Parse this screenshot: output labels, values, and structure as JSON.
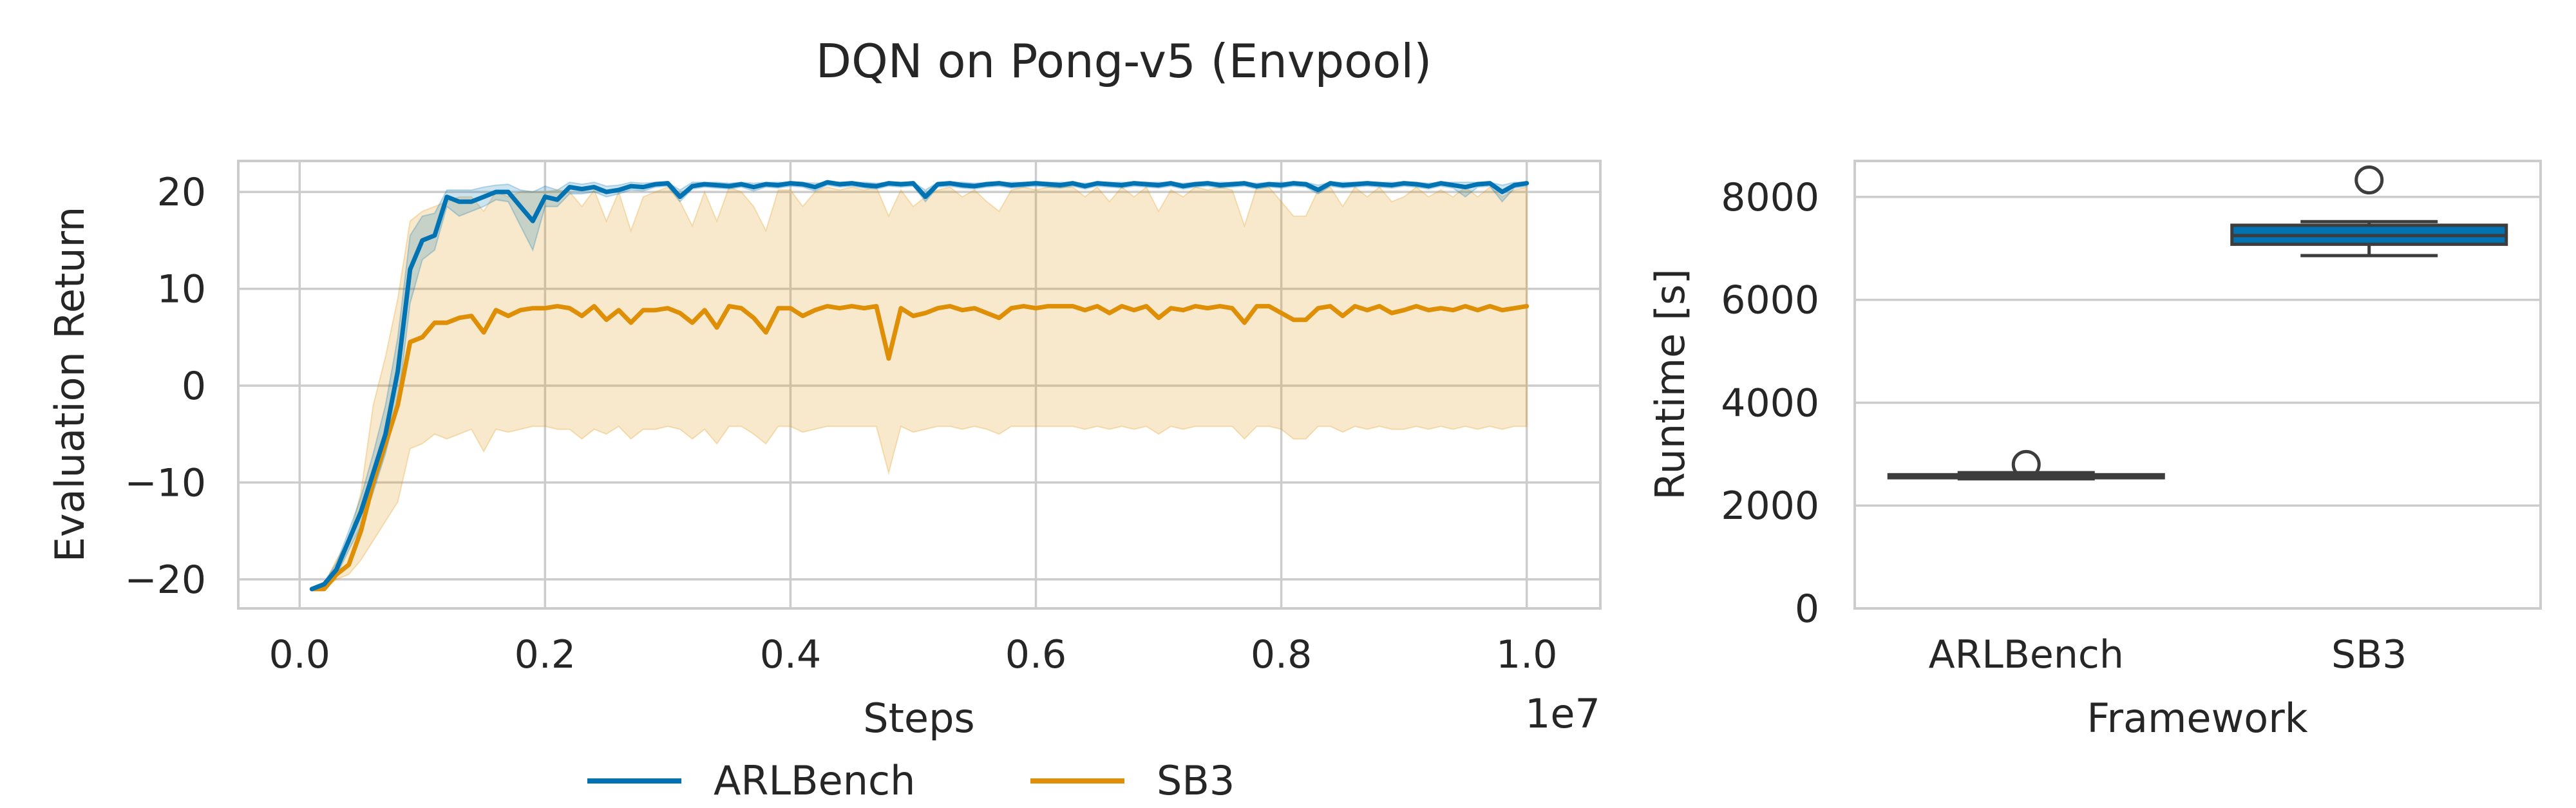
{
  "figure": {
    "title": "DQN on Pong-v5 (Envpool)"
  },
  "legend": {
    "placement": "bottom-center",
    "entries": [
      {
        "label": "ARLBench",
        "color": "#0173b2"
      },
      {
        "label": "SB3",
        "color": "#de8f05"
      }
    ]
  },
  "chart_data": [
    {
      "type": "line",
      "xlabel": "Steps",
      "ylabel": "Evaluation Return",
      "x_offset_label": "1e7",
      "xlim": [
        -0.05,
        1.06
      ],
      "ylim": [
        -23,
        23.2
      ],
      "xticks": [
        0.0,
        0.2,
        0.4,
        0.6,
        0.8,
        1.0
      ],
      "xtick_labels": [
        "0.0",
        "0.2",
        "0.4",
        "0.6",
        "0.8",
        "1.0"
      ],
      "yticks": [
        -20,
        -10,
        0,
        10,
        20
      ],
      "ytick_labels": [
        "−20",
        "−10",
        "0",
        "10",
        "20"
      ],
      "grid": true,
      "x": [
        0.01,
        0.02,
        0.03,
        0.04,
        0.05,
        0.06,
        0.07,
        0.08,
        0.09,
        0.1,
        0.11,
        0.12,
        0.13,
        0.14,
        0.15,
        0.16,
        0.17,
        0.18,
        0.19,
        0.2,
        0.21,
        0.22,
        0.23,
        0.24,
        0.25,
        0.26,
        0.27,
        0.28,
        0.29,
        0.3,
        0.31,
        0.32,
        0.33,
        0.34,
        0.35,
        0.36,
        0.37,
        0.38,
        0.39,
        0.4,
        0.41,
        0.42,
        0.43,
        0.44,
        0.45,
        0.46,
        0.47,
        0.48,
        0.49,
        0.5,
        0.51,
        0.52,
        0.53,
        0.54,
        0.55,
        0.56,
        0.57,
        0.58,
        0.59,
        0.6,
        0.61,
        0.62,
        0.63,
        0.64,
        0.65,
        0.66,
        0.67,
        0.68,
        0.69,
        0.7,
        0.71,
        0.72,
        0.73,
        0.74,
        0.75,
        0.76,
        0.77,
        0.78,
        0.79,
        0.8,
        0.81,
        0.82,
        0.83,
        0.84,
        0.85,
        0.86,
        0.87,
        0.88,
        0.89,
        0.9,
        0.91,
        0.92,
        0.93,
        0.94,
        0.95,
        0.96,
        0.97,
        0.98,
        0.99,
        1.0
      ],
      "series": [
        {
          "name": "ARLBench",
          "color": "#0173b2",
          "values": [
            -21,
            -20.5,
            -19,
            -16,
            -13,
            -9,
            -5,
            1.5,
            12,
            15,
            15.5,
            19.5,
            19,
            19,
            19.5,
            20,
            20,
            18.5,
            17,
            19.5,
            19.2,
            20.5,
            20.3,
            20.5,
            20.0,
            20.2,
            20.6,
            20.5,
            20.8,
            20.9,
            19.5,
            20.6,
            20.8,
            20.7,
            20.6,
            20.8,
            20.5,
            20.8,
            20.7,
            20.9,
            20.8,
            20.5,
            21.0,
            20.8,
            20.9,
            20.7,
            20.6,
            20.9,
            20.8,
            20.9,
            19.5,
            20.8,
            20.9,
            20.7,
            20.6,
            20.8,
            20.9,
            20.7,
            20.8,
            20.9,
            20.8,
            20.7,
            20.9,
            20.6,
            20.9,
            20.8,
            20.7,
            20.9,
            20.8,
            20.7,
            20.9,
            20.6,
            20.8,
            20.9,
            20.7,
            20.8,
            20.9,
            20.6,
            20.8,
            20.7,
            20.9,
            20.8,
            20.2,
            20.9,
            20.7,
            20.8,
            20.9,
            20.8,
            20.7,
            20.9,
            20.8,
            20.6,
            20.9,
            20.7,
            20.5,
            20.8,
            20.9,
            20.0,
            20.7,
            20.9
          ],
          "lower": [
            -21,
            -20.7,
            -19.6,
            -17,
            -14.5,
            -11,
            -7,
            -2,
            8.5,
            13,
            14,
            18.5,
            17.5,
            18,
            18.5,
            19.2,
            19,
            16.5,
            14,
            18.5,
            18.5,
            19.8,
            19.8,
            20.0,
            19.5,
            19.8,
            20.2,
            20.1,
            20.5,
            20.6,
            19.0,
            20.3,
            20.5,
            20.4,
            20.3,
            20.5,
            20.1,
            20.5,
            20.4,
            20.6,
            20.5,
            20.1,
            20.7,
            20.5,
            20.6,
            20.4,
            20.3,
            20.6,
            20.5,
            20.6,
            19.0,
            20.5,
            20.6,
            20.4,
            20.3,
            20.5,
            20.6,
            20.4,
            20.5,
            20.6,
            20.5,
            20.4,
            20.6,
            20.3,
            20.6,
            20.5,
            20.4,
            20.6,
            20.5,
            20.4,
            20.6,
            20.3,
            20.5,
            20.6,
            20.4,
            20.5,
            20.6,
            20.3,
            20.5,
            20.4,
            20.6,
            20.5,
            19.8,
            20.6,
            20.4,
            20.5,
            20.6,
            20.5,
            20.4,
            20.6,
            20.5,
            20.3,
            20.6,
            20.4,
            19.5,
            20.5,
            20.6,
            19.0,
            20.4,
            20.6
          ],
          "upper": [
            -21,
            -20.3,
            -18.3,
            -15,
            -11.5,
            -7,
            -2,
            5,
            15.5,
            17.5,
            17.8,
            20.2,
            20.2,
            20.2,
            20.5,
            20.7,
            20.8,
            20.2,
            20.0,
            20.6,
            20.2,
            21.0,
            20.8,
            21.0,
            20.6,
            20.7,
            21.0,
            20.9,
            21.0,
            21.0,
            20.2,
            21.0,
            21.0,
            21.0,
            20.9,
            21.0,
            20.9,
            21.0,
            21.0,
            21.0,
            21.0,
            20.9,
            21.0,
            21.0,
            21.0,
            21.0,
            20.9,
            21.0,
            21.0,
            21.0,
            20.2,
            21.0,
            21.0,
            21.0,
            20.9,
            21.0,
            21.0,
            21.0,
            21.0,
            21.0,
            21.0,
            21.0,
            21.0,
            20.9,
            21.0,
            21.0,
            21.0,
            21.0,
            21.0,
            21.0,
            21.0,
            20.9,
            21.0,
            21.0,
            21.0,
            21.0,
            21.0,
            20.9,
            21.0,
            21.0,
            21.0,
            21.0,
            20.7,
            21.0,
            21.0,
            21.0,
            21.0,
            21.0,
            21.0,
            21.0,
            21.0,
            20.9,
            21.0,
            21.0,
            21.0,
            21.0,
            21.0,
            20.7,
            21.0,
            21.0
          ]
        },
        {
          "name": "SB3",
          "color": "#de8f05",
          "values": [
            -21,
            -21,
            -19.5,
            -18.5,
            -15,
            -10,
            -6,
            -2,
            4.5,
            5,
            6.5,
            6.5,
            7,
            7.2,
            5.5,
            7.8,
            7.2,
            7.8,
            8,
            8,
            8.2,
            8.0,
            7.2,
            8.2,
            6.8,
            7.8,
            6.5,
            7.8,
            7.8,
            8.0,
            7.5,
            6.5,
            7.8,
            6.0,
            8.2,
            8.0,
            7.0,
            5.5,
            8.0,
            8.0,
            7.2,
            7.8,
            8.2,
            8.0,
            8.2,
            8.0,
            8.2,
            2.8,
            8.0,
            7.2,
            7.5,
            8.0,
            8.2,
            7.8,
            8.0,
            7.5,
            7.0,
            8.0,
            8.2,
            8.0,
            8.2,
            8.2,
            8.2,
            7.8,
            8.2,
            7.5,
            8.2,
            7.8,
            8.2,
            7.0,
            8.0,
            7.8,
            8.2,
            8.0,
            8.2,
            8.0,
            6.5,
            8.2,
            8.2,
            7.5,
            6.8,
            6.8,
            8.0,
            8.2,
            7.2,
            8.2,
            7.8,
            8.2,
            7.5,
            7.8,
            8.2,
            7.8,
            8.0,
            7.8,
            8.2,
            7.8,
            8.2,
            7.8,
            8.0,
            8.2
          ],
          "lower": [
            -21,
            -21,
            -20,
            -19.5,
            -18,
            -16,
            -14,
            -12,
            -6.5,
            -6,
            -5,
            -5.5,
            -5,
            -4.5,
            -6.8,
            -4.5,
            -4.8,
            -4.5,
            -4.2,
            -4.2,
            -4.5,
            -4.5,
            -5.5,
            -4.5,
            -5.0,
            -4.2,
            -5.5,
            -4.5,
            -4.5,
            -4.2,
            -4.5,
            -5.5,
            -4.5,
            -6.0,
            -4.2,
            -4.2,
            -5.0,
            -6.0,
            -4.2,
            -4.2,
            -4.8,
            -4.5,
            -4.2,
            -4.2,
            -4.2,
            -4.2,
            -4.2,
            -9.0,
            -4.2,
            -4.8,
            -4.5,
            -4.2,
            -4.2,
            -4.5,
            -4.2,
            -4.5,
            -5.0,
            -4.2,
            -4.2,
            -4.2,
            -4.2,
            -4.2,
            -4.2,
            -4.5,
            -4.2,
            -4.5,
            -4.2,
            -4.5,
            -4.2,
            -5.0,
            -4.2,
            -4.5,
            -4.2,
            -4.2,
            -4.2,
            -4.2,
            -5.5,
            -4.2,
            -4.2,
            -4.5,
            -5.5,
            -5.5,
            -4.2,
            -4.2,
            -4.8,
            -4.2,
            -4.5,
            -4.2,
            -4.5,
            -4.5,
            -4.2,
            -4.5,
            -4.2,
            -4.5,
            -4.2,
            -4.5,
            -4.2,
            -4.5,
            -4.2,
            -4.2
          ],
          "upper": [
            -21,
            -20.5,
            -18,
            -16,
            -11,
            -2,
            3,
            9,
            17,
            18,
            18.5,
            19,
            19.5,
            19.5,
            18,
            20,
            19.5,
            20,
            20,
            20,
            20.2,
            20,
            18.5,
            20.2,
            17,
            20,
            16,
            19.5,
            20,
            20.5,
            19,
            16.5,
            20,
            17,
            20.5,
            20,
            18.5,
            16,
            20.2,
            20.2,
            18.5,
            20,
            20.5,
            20.2,
            20.5,
            20.2,
            20.5,
            17.5,
            20.2,
            18.5,
            19.5,
            20.2,
            20.5,
            19.5,
            20.2,
            19,
            18,
            20.2,
            20.5,
            20.2,
            20.5,
            20.5,
            20.5,
            19.5,
            20.5,
            19,
            20.5,
            19.5,
            20.5,
            18,
            20.2,
            19.5,
            20.5,
            20.2,
            20.5,
            20.2,
            16.5,
            20.5,
            20.5,
            19,
            17.5,
            17.5,
            20.2,
            20.5,
            18.5,
            20.5,
            19.5,
            20.5,
            19,
            19.5,
            20.5,
            19.5,
            20.2,
            19.5,
            20.5,
            19.5,
            20.5,
            19.5,
            20.2,
            20.5
          ]
        }
      ]
    },
    {
      "type": "box",
      "xlabel": "Framework",
      "ylabel": "Runtime [s]",
      "categories": [
        "ARLBench",
        "SB3"
      ],
      "ylim": [
        0,
        8700
      ],
      "yticks": [
        0,
        2000,
        4000,
        6000,
        8000
      ],
      "ytick_labels": [
        "0",
        "2000",
        "4000",
        "6000",
        "8000"
      ],
      "grid": true,
      "boxes": [
        {
          "label": "ARLBench",
          "whisker_low": 2520,
          "q1": 2540,
          "median": 2560,
          "q3": 2600,
          "whisker_high": 2640,
          "outliers": [
            2800
          ],
          "color": "#0173b2"
        },
        {
          "label": "SB3",
          "whisker_low": 6860,
          "q1": 7080,
          "median": 7250,
          "q3": 7450,
          "whisker_high": 7520,
          "outliers": [
            8330
          ],
          "color": "#0173b2"
        }
      ]
    }
  ]
}
